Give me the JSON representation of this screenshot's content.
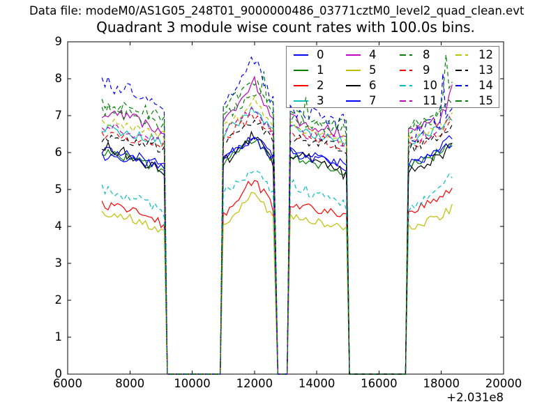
{
  "header": {
    "data_file_label": "Data file: modeM0/AS1G05_248T01_9000000486_03771cztM0_level2_quad_clean.evt"
  },
  "chart_data": {
    "type": "line",
    "title": "Quadrant 3 module wise count rates with 100.0s bins.",
    "xlabel": "",
    "ylabel": "",
    "xlim": [
      6000,
      20000
    ],
    "ylim": [
      0,
      9
    ],
    "x_offset_text": "+2.031e8",
    "bin_seconds": 100.0,
    "grid": false,
    "legend_position": "upper right",
    "legend_columns": 4,
    "xticks": [
      "6000",
      "8000",
      "10000",
      "12000",
      "14000",
      "16000",
      "18000",
      "20000"
    ],
    "xtick_values": [
      6000,
      8000,
      10000,
      12000,
      14000,
      16000,
      18000,
      20000
    ],
    "yticks": [
      "0",
      "1",
      "2",
      "3",
      "4",
      "5",
      "6",
      "7",
      "8",
      "9"
    ],
    "ytick_values": [
      0,
      1,
      2,
      3,
      4,
      5,
      6,
      7,
      8,
      9
    ],
    "x_bin_step": 100,
    "segments": [
      {
        "x0": 7100,
        "x1": 9100,
        "peak_t": 0.5
      },
      {
        "x0": 11000,
        "x1": 12650,
        "peak_t": 0.6
      },
      {
        "x0": 13150,
        "x1": 14950,
        "peak_t": 0.4
      },
      {
        "x0": 16950,
        "x1": 18400,
        "peak_t": 0.7
      }
    ],
    "gaps_at_zero": true,
    "series": [
      {
        "label": "0",
        "color": "#0000ff",
        "dash": false,
        "noise_amp": 0.13,
        "profiles": [
          [
            6.1,
            5.95,
            5.7
          ],
          [
            5.8,
            6.5,
            5.9
          ],
          [
            6.1,
            5.9,
            5.6
          ],
          [
            5.7,
            6.1,
            6.5
          ]
        ],
        "spikes": []
      },
      {
        "label": "1",
        "color": "#007f00",
        "dash": false,
        "noise_amp": 0.14,
        "profiles": [
          [
            6.0,
            5.85,
            5.5
          ],
          [
            5.7,
            6.4,
            5.7
          ],
          [
            5.9,
            5.75,
            5.5
          ],
          [
            5.6,
            6.0,
            6.4
          ]
        ],
        "spikes": []
      },
      {
        "label": "2",
        "color": "#ff0000",
        "dash": false,
        "noise_amp": 0.12,
        "profiles": [
          [
            4.6,
            4.4,
            4.05
          ],
          [
            4.3,
            5.3,
            4.45
          ],
          [
            4.65,
            4.5,
            4.3
          ],
          [
            4.4,
            4.8,
            5.1
          ]
        ],
        "spikes": []
      },
      {
        "label": "3",
        "color": "#00bfbf",
        "dash": false,
        "noise_amp": 0.15,
        "profiles": [
          [
            6.7,
            6.5,
            6.3
          ],
          [
            6.5,
            7.2,
            6.5
          ],
          [
            6.7,
            6.5,
            6.3
          ],
          [
            6.3,
            6.7,
            7.0
          ]
        ],
        "spikes": []
      },
      {
        "label": "4",
        "color": "#bf00bf",
        "dash": false,
        "noise_amp": 0.16,
        "profiles": [
          [
            7.1,
            6.9,
            6.6
          ],
          [
            6.8,
            7.9,
            6.8
          ],
          [
            6.9,
            6.7,
            6.5
          ],
          [
            6.5,
            6.9,
            7.8
          ]
        ],
        "spikes": [
          [
            12000,
            8.05
          ]
        ]
      },
      {
        "label": "5",
        "color": "#bfbf00",
        "dash": false,
        "noise_amp": 0.12,
        "profiles": [
          [
            4.4,
            4.2,
            3.85
          ],
          [
            4.0,
            5.0,
            4.1
          ],
          [
            4.3,
            4.15,
            4.0
          ],
          [
            3.95,
            4.25,
            4.55
          ]
        ],
        "spikes": []
      },
      {
        "label": "6",
        "color": "#000000",
        "dash": false,
        "noise_amp": 0.16,
        "profiles": [
          [
            6.2,
            5.9,
            5.5
          ],
          [
            5.7,
            6.5,
            5.7
          ],
          [
            6.0,
            5.8,
            5.4
          ],
          [
            5.5,
            5.9,
            6.4
          ]
        ],
        "spikes": []
      },
      {
        "label": "7",
        "color": "#0000ff",
        "dash": false,
        "noise_amp": 0.12,
        "profiles": [
          [
            5.9,
            5.8,
            5.6
          ],
          [
            5.8,
            6.4,
            5.8
          ],
          [
            6.0,
            5.85,
            5.7
          ],
          [
            5.7,
            6.0,
            6.3
          ]
        ],
        "spikes": []
      },
      {
        "label": "8",
        "color": "#007f00",
        "dash": true,
        "noise_amp": 0.18,
        "profiles": [
          [
            7.2,
            7.0,
            6.7
          ],
          [
            6.9,
            7.7,
            6.9
          ],
          [
            7.0,
            6.8,
            6.6
          ],
          [
            6.6,
            7.0,
            7.5
          ]
        ],
        "spikes": [
          [
            12300,
            8.2
          ]
        ]
      },
      {
        "label": "9",
        "color": "#ff0000",
        "dash": true,
        "noise_amp": 0.14,
        "profiles": [
          [
            6.5,
            6.35,
            6.2
          ],
          [
            6.4,
            7.0,
            6.4
          ],
          [
            6.5,
            6.35,
            6.2
          ],
          [
            6.2,
            6.5,
            6.8
          ]
        ],
        "spikes": []
      },
      {
        "label": "10",
        "color": "#00bfbf",
        "dash": true,
        "noise_amp": 0.15,
        "profiles": [
          [
            5.0,
            4.8,
            4.4
          ],
          [
            4.9,
            5.5,
            4.9
          ],
          [
            5.2,
            4.9,
            4.6
          ],
          [
            4.5,
            5.0,
            5.5
          ]
        ],
        "spikes": []
      },
      {
        "label": "11",
        "color": "#bf00bf",
        "dash": true,
        "noise_amp": 0.15,
        "profiles": [
          [
            6.7,
            6.55,
            6.4
          ],
          [
            6.5,
            7.2,
            6.5
          ],
          [
            6.6,
            6.45,
            6.3
          ],
          [
            6.3,
            6.6,
            7.0
          ]
        ],
        "spikes": []
      },
      {
        "label": "12",
        "color": "#bfbf00",
        "dash": true,
        "noise_amp": 0.16,
        "profiles": [
          [
            6.9,
            6.7,
            6.5
          ],
          [
            6.6,
            7.4,
            6.6
          ],
          [
            6.7,
            6.55,
            6.4
          ],
          [
            6.4,
            6.7,
            7.1
          ]
        ],
        "spikes": []
      },
      {
        "label": "13",
        "color": "#000000",
        "dash": true,
        "noise_amp": 0.14,
        "profiles": [
          [
            6.4,
            6.3,
            6.1
          ],
          [
            6.3,
            6.9,
            6.3
          ],
          [
            6.4,
            6.3,
            6.1
          ],
          [
            6.1,
            6.4,
            6.7
          ]
        ],
        "spikes": []
      },
      {
        "label": "14",
        "color": "#0000ff",
        "dash": true,
        "noise_amp": 0.22,
        "profiles": [
          [
            7.9,
            7.6,
            7.35
          ],
          [
            7.4,
            8.5,
            7.3
          ],
          [
            7.2,
            7.0,
            6.8
          ],
          [
            6.4,
            6.9,
            7.4
          ]
        ],
        "spikes": [
          [
            12050,
            8.7
          ],
          [
            13500,
            7.8
          ],
          [
            18050,
            8.15
          ]
        ]
      },
      {
        "label": "15",
        "color": "#007f00",
        "dash": true,
        "noise_amp": 0.2,
        "profiles": [
          [
            7.4,
            7.2,
            6.9
          ],
          [
            7.1,
            8.0,
            7.1
          ],
          [
            7.1,
            6.9,
            6.7
          ],
          [
            6.6,
            7.2,
            7.9
          ]
        ],
        "spikes": [
          [
            12450,
            8.3
          ],
          [
            13650,
            7.5
          ],
          [
            18150,
            8.65
          ]
        ]
      }
    ]
  },
  "colors": {
    "background": "#ffffff",
    "axes": "#000000",
    "legend_border": "#7d7d7d"
  }
}
